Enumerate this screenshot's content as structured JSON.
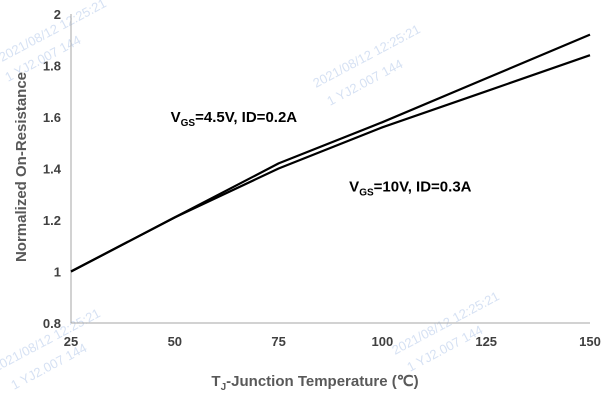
{
  "chart_data": {
    "type": "line",
    "xlabel": {
      "main": "T",
      "sub": "J",
      "rest": "-Junction Temperature (℃)"
    },
    "ylabel": "Normalized On-Resistance",
    "xlim": [
      25,
      150
    ],
    "ylim": [
      0.8,
      2.0
    ],
    "x_ticks": [
      25,
      50,
      75,
      100,
      125,
      150
    ],
    "y_ticks": [
      0.8,
      1.0,
      1.2,
      1.4,
      1.6,
      1.8,
      2.0
    ],
    "x_tick_labels": [
      "25",
      "50",
      "75",
      "100",
      "125",
      "150"
    ],
    "y_tick_labels": [
      "0.8",
      "1",
      "1.2",
      "1.4",
      "1.6",
      "1.8",
      "2"
    ],
    "grid": false,
    "series": [
      {
        "x": [
          25,
          50,
          75,
          100,
          125,
          150
        ],
        "values": [
          1.0,
          1.21,
          1.42,
          1.58,
          1.75,
          1.92
        ],
        "color": "#000000"
      },
      {
        "x": [
          25,
          50,
          75,
          100,
          125,
          150
        ],
        "values": [
          1.0,
          1.21,
          1.4,
          1.56,
          1.7,
          1.84
        ],
        "color": "#000000"
      }
    ],
    "annotations": [
      {
        "main": "V",
        "sub": "GS",
        "rest": "=4.5V, ID=0.2A",
        "x": 49,
        "y": 1.58
      },
      {
        "main": "V",
        "sub": "GS",
        "rest": "=10V, ID=0.3A",
        "x": 92,
        "y": 1.31
      }
    ]
  },
  "watermarks": [
    "2021/08/12  12:25:21",
    "1 YJ2.007 144",
    "2021/08/12  12:25:21",
    "1 YJ2.007 144",
    "2021/08/12  12:25:21",
    "1 YJ2.007 144",
    "2021/08/12  12:25:21",
    "1 YJ2.007 144"
  ]
}
